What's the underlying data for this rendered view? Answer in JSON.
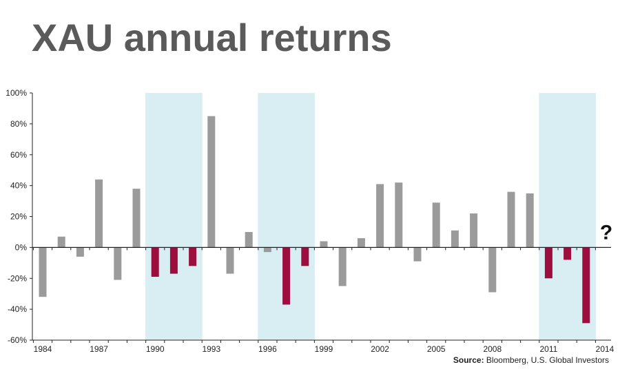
{
  "title": "XAU annual returns",
  "source": {
    "label": "Source:",
    "text": "Bloomberg, U.S. Global Investors"
  },
  "colors": {
    "positive_bar": "#9b9b9b",
    "negative_highlight_bar": "#9b0e3d",
    "shade": "#d9eef3",
    "axis": "#222222"
  },
  "chart_data": {
    "type": "bar",
    "title": "XAU annual returns",
    "xlabel": "",
    "ylabel": "",
    "ylim": [
      -60,
      100
    ],
    "y_ticks": [
      -60,
      -40,
      -20,
      0,
      20,
      40,
      60,
      80,
      100
    ],
    "y_tick_labels": [
      "-60%",
      "-40%",
      "-20%",
      "0%",
      "20%",
      "40%",
      "60%",
      "80%",
      "100%"
    ],
    "x_tick_labels": [
      "1984",
      "1987",
      "1990",
      "1993",
      "1996",
      "1999",
      "2002",
      "2005",
      "2008",
      "2011",
      "2014"
    ],
    "categories": [
      1984,
      1985,
      1986,
      1987,
      1988,
      1989,
      1990,
      1991,
      1992,
      1993,
      1994,
      1995,
      1996,
      1997,
      1998,
      1999,
      2000,
      2001,
      2002,
      2003,
      2004,
      2005,
      2006,
      2007,
      2008,
      2009,
      2010,
      2011,
      2012,
      2013,
      2014
    ],
    "values": [
      -32,
      7,
      -6,
      44,
      -21,
      38,
      -19,
      -17,
      -12,
      85,
      -17,
      10,
      -3,
      -37,
      -12,
      4,
      -25,
      6,
      41,
      42,
      -9,
      29,
      11,
      22,
      -29,
      36,
      35,
      -20,
      -8,
      -49,
      null
    ],
    "highlighted_years": [
      1990,
      1991,
      1992,
      1997,
      1998,
      2011,
      2012,
      2013
    ],
    "shaded_periods": [
      [
        1990,
        1992
      ],
      [
        1996,
        1998
      ],
      [
        2011,
        2013
      ]
    ],
    "annotation": {
      "year": 2014,
      "text": "?"
    }
  }
}
